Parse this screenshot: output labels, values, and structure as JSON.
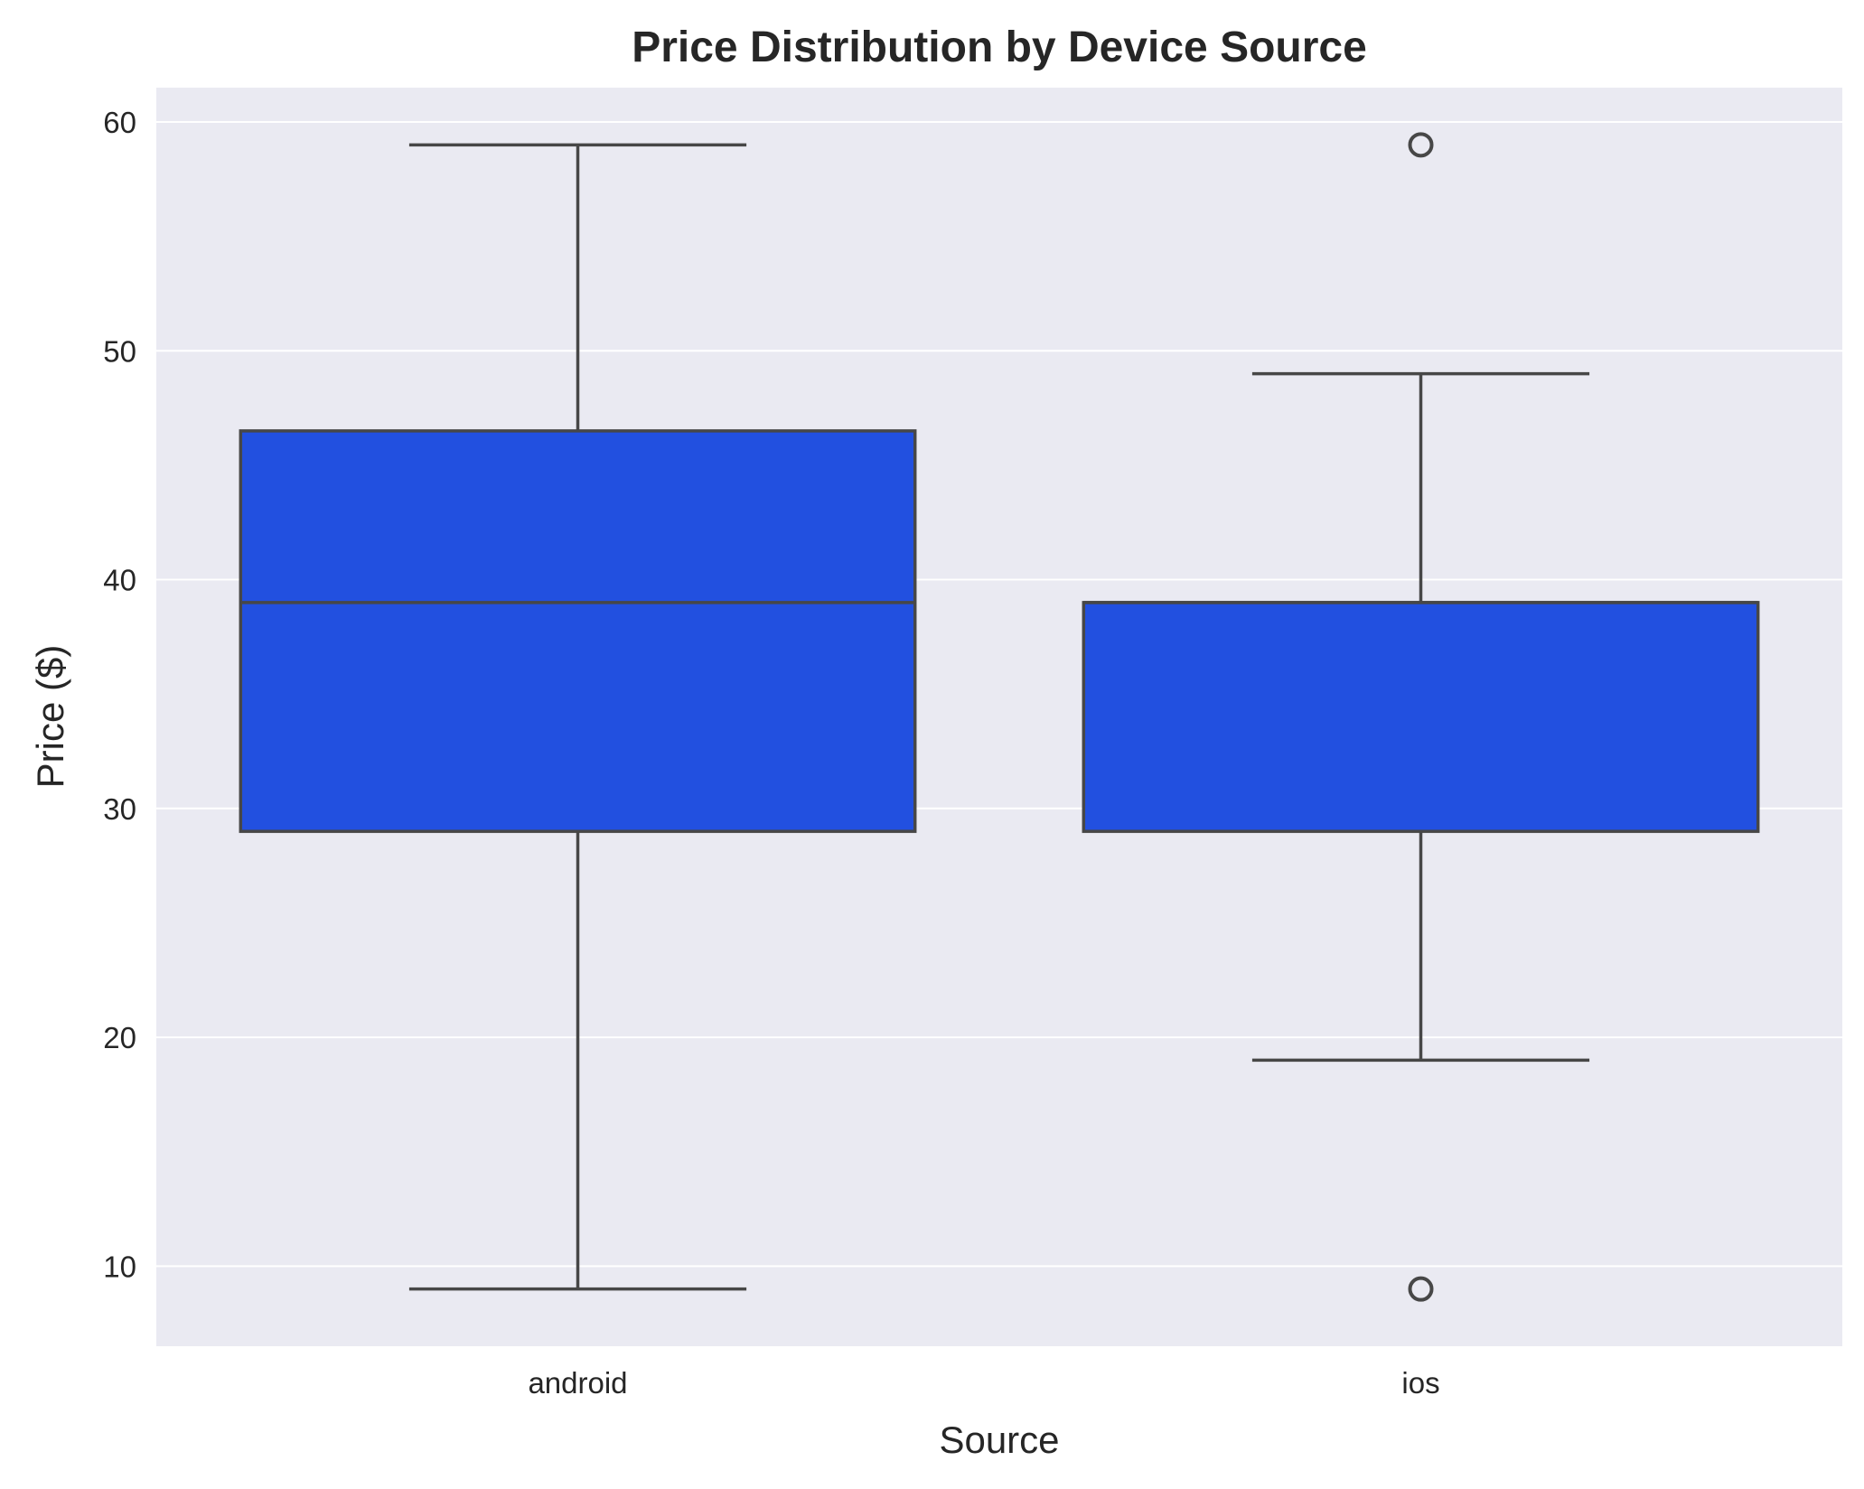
{
  "chart_data": {
    "type": "box",
    "title": "Price Distribution by Device Source",
    "xlabel": "Source",
    "ylabel": "Price ($)",
    "ylim": [
      6.5,
      61.5
    ],
    "yticks": [
      10,
      20,
      30,
      40,
      50,
      60
    ],
    "grid": true,
    "categories": [
      "android",
      "ios"
    ],
    "boxes": [
      {
        "category": "android",
        "whisker_low": 9,
        "q1": 29,
        "median": 39,
        "q3": 46.5,
        "whisker_high": 59,
        "outliers": []
      },
      {
        "category": "ios",
        "whisker_low": 19,
        "q1": 29,
        "median": 39,
        "q3": 39,
        "whisker_high": 49,
        "outliers": [
          9,
          59
        ]
      }
    ],
    "colors": {
      "box_fill": "#2250E0",
      "line": "#474747",
      "plot_background": "#EAEAF2",
      "grid": "#FFFFFF",
      "text": "#262626"
    }
  }
}
